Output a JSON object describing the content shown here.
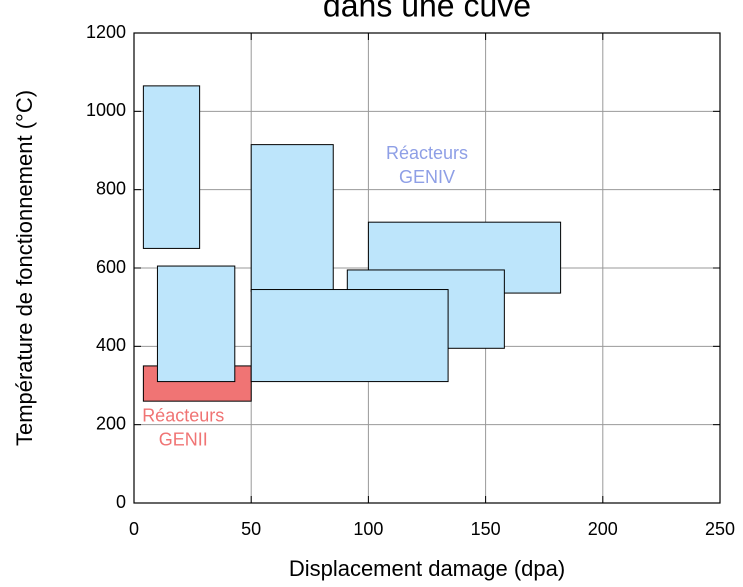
{
  "chart_data": {
    "type": "range-box",
    "title": "dans une cuve",
    "x_label": "Displacement damage (dpa)",
    "y_label": "Température de fonctionnement (°C)",
    "xlim": [
      0,
      250
    ],
    "ylim": [
      0,
      1200
    ],
    "xticks": [
      0,
      50,
      100,
      150,
      200,
      250
    ],
    "yticks": [
      0,
      200,
      400,
      600,
      800,
      1000,
      1200
    ],
    "grid": true,
    "boxes": [
      {
        "x": [
          4,
          28
        ],
        "y": [
          650,
          1065
        ],
        "color": "#bde5fb"
      },
      {
        "x": [
          4,
          50
        ],
        "y": [
          260,
          350
        ],
        "color": "#f07474"
      },
      {
        "x": [
          10,
          43
        ],
        "y": [
          310,
          605
        ],
        "color": "#bde5fb"
      },
      {
        "x": [
          50,
          85
        ],
        "y": [
          540,
          915
        ],
        "color": "#bde5fb"
      },
      {
        "x": [
          100,
          182
        ],
        "y": [
          536,
          717
        ],
        "color": "#bde5fb"
      },
      {
        "x": [
          91,
          158
        ],
        "y": [
          395,
          595
        ],
        "color": "#bde5fb"
      },
      {
        "x": [
          50,
          134
        ],
        "y": [
          310,
          545
        ],
        "color": "#bde5fb"
      }
    ],
    "annotations": [
      {
        "lines": [
          "Réacteurs",
          "GENIV"
        ],
        "color": "#8e9fe6",
        "x": 125,
        "y": 860
      },
      {
        "lines": [
          "Réacteurs",
          "GENII"
        ],
        "color": "#f07474",
        "x": 21,
        "y": 190
      }
    ]
  }
}
